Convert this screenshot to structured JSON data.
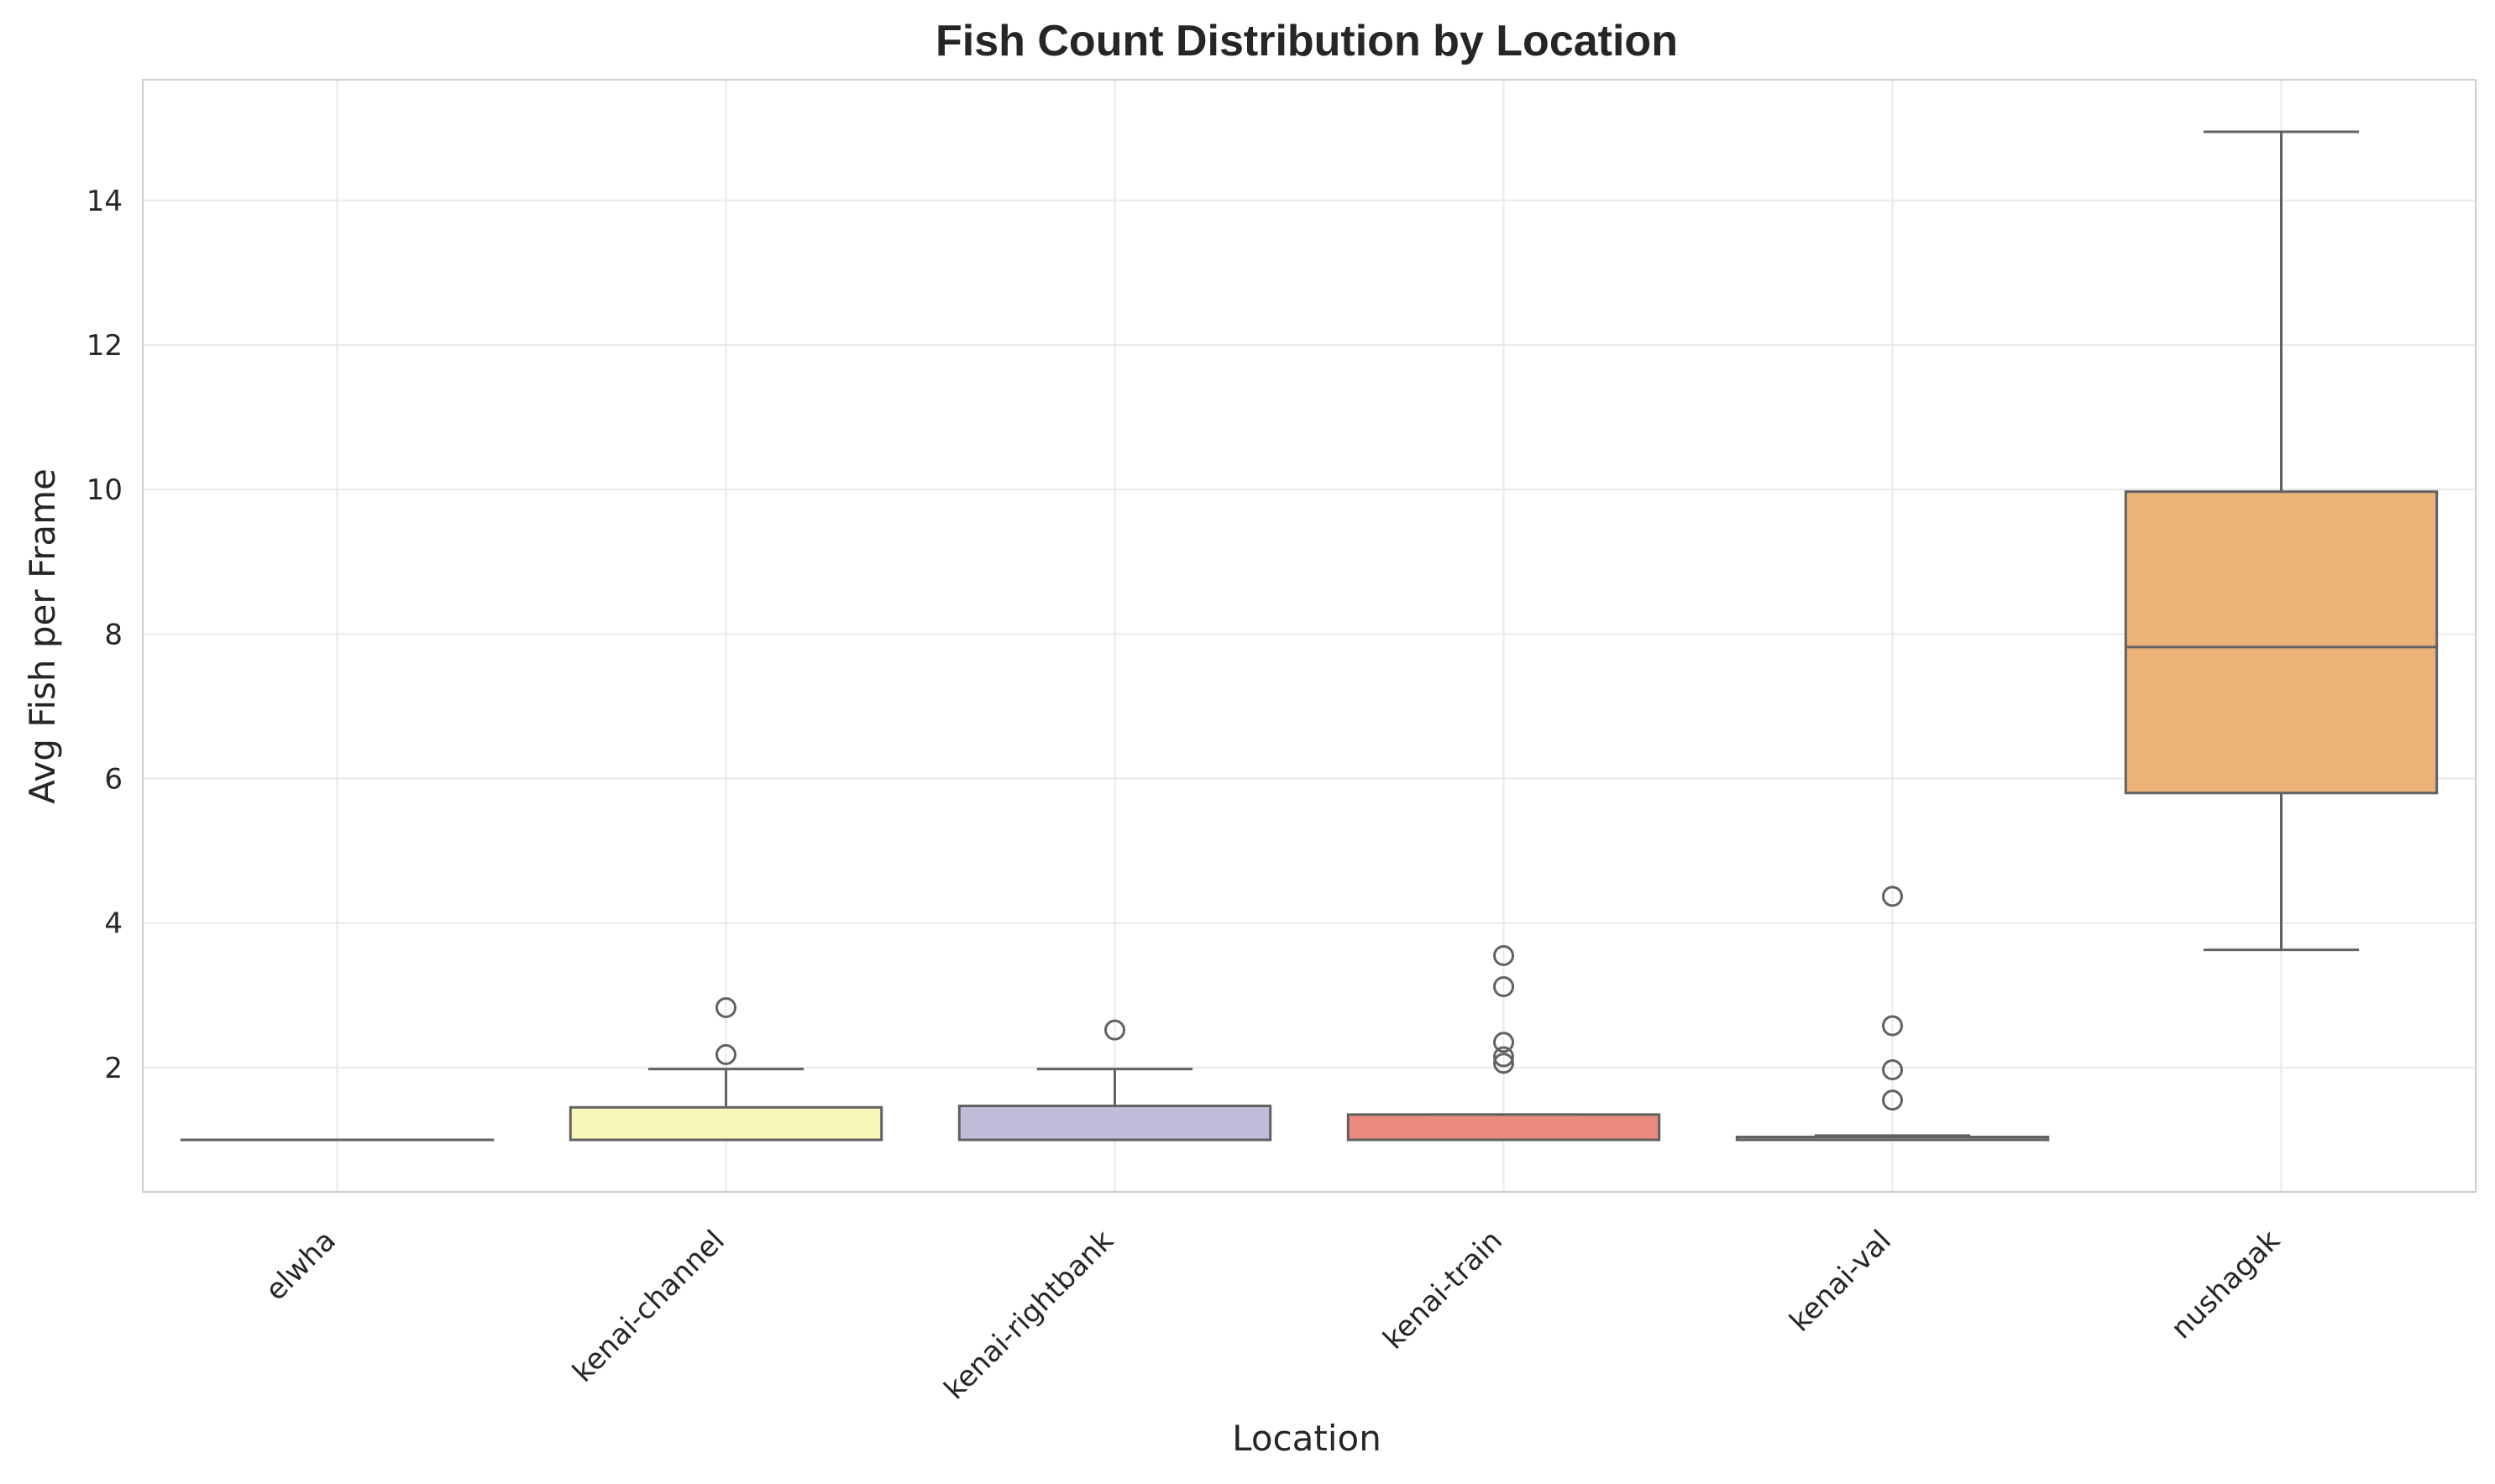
{
  "chart_data": {
    "type": "box",
    "title": "Fish Count Distribution by Location",
    "xlabel": "Location",
    "ylabel": "Avg Fish per Frame",
    "ylim": [
      0.28,
      15.67
    ],
    "yticks": [
      2,
      4,
      6,
      8,
      10,
      12,
      14
    ],
    "grid": true,
    "categories": [
      "elwha",
      "kenai-channel",
      "kenai-rightbank",
      "kenai-train",
      "kenai-val",
      "nushagak"
    ],
    "boxes": [
      {
        "category": "elwha",
        "whisker_low": 1.0,
        "q1": 1.0,
        "median": 1.0,
        "q3": 1.0,
        "whisker_high": 1.0,
        "outliers": [],
        "color": "#8dd3c7"
      },
      {
        "category": "kenai-channel",
        "whisker_low": 1.0,
        "q1": 1.0,
        "median": 1.0,
        "q3": 1.45,
        "whisker_high": 1.98,
        "outliers": [
          2.18,
          2.83
        ],
        "color": "#f7f7b7"
      },
      {
        "category": "kenai-rightbank",
        "whisker_low": 1.0,
        "q1": 1.0,
        "median": 1.0,
        "q3": 1.47,
        "whisker_high": 1.98,
        "outliers": [
          2.52
        ],
        "color": "#c0bcd9"
      },
      {
        "category": "kenai-train",
        "whisker_low": 1.0,
        "q1": 1.0,
        "median": 1.0,
        "q3": 1.35,
        "whisker_high": 1.35,
        "outliers": [
          2.06,
          2.15,
          2.35,
          3.12,
          3.55
        ],
        "color": "#ec8a80"
      },
      {
        "category": "kenai-val",
        "whisker_low": 1.0,
        "q1": 1.0,
        "median": 1.0,
        "q3": 1.04,
        "whisker_high": 1.06,
        "outliers": [
          1.55,
          1.97,
          2.58,
          4.37
        ],
        "color": "#8fb6d6"
      },
      {
        "category": "nushagak",
        "whisker_low": 3.63,
        "q1": 5.8,
        "median": 7.82,
        "q3": 9.97,
        "whisker_high": 14.95,
        "outliers": [],
        "color": "#ebb377"
      }
    ]
  }
}
